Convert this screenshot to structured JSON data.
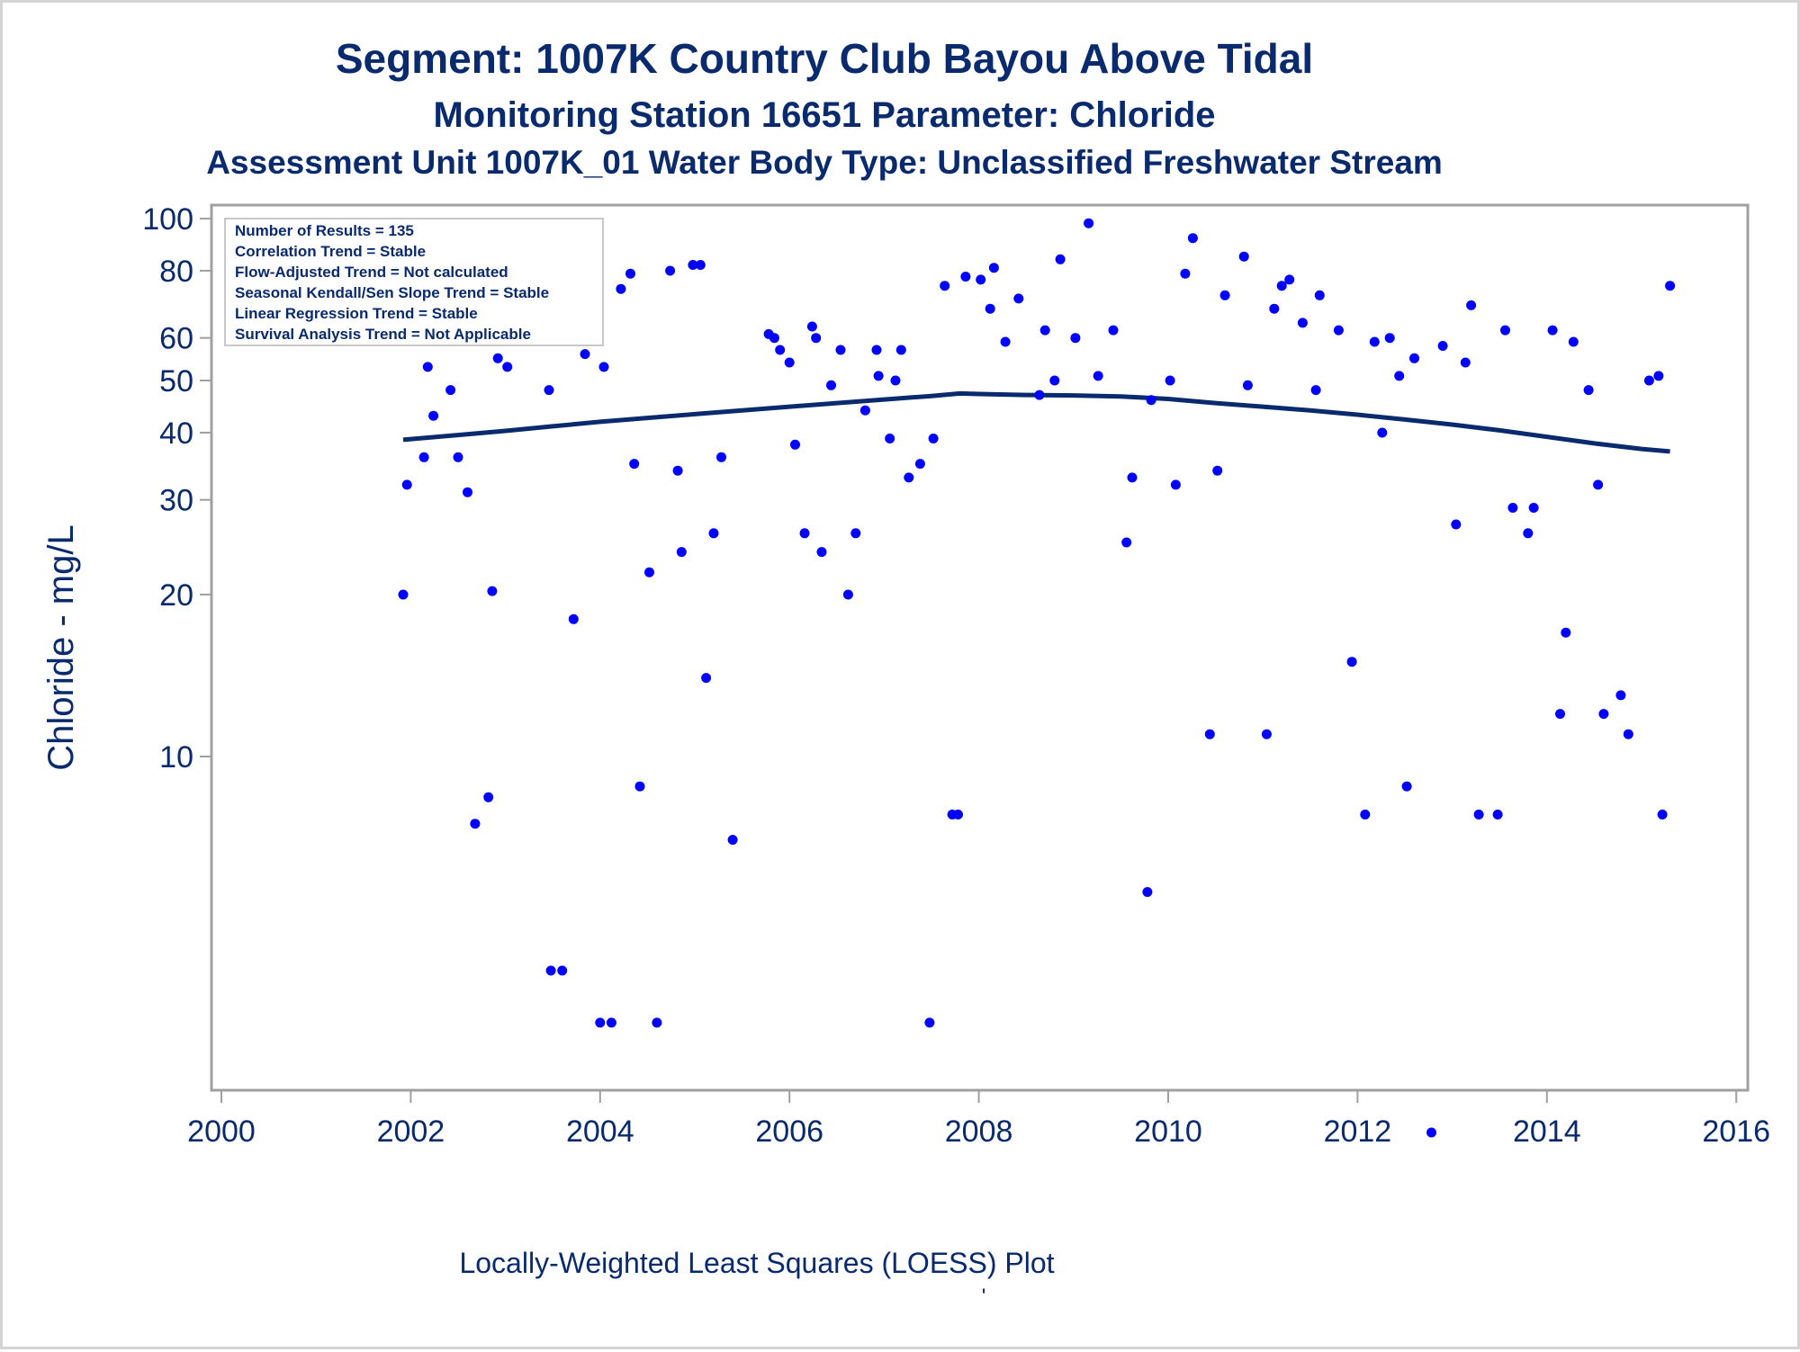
{
  "chart_data": {
    "type": "scatter",
    "title": "Segment: 1007K  Country Club Bayou Above Tidal",
    "subtitle": "Monitoring Station 16651 Parameter: Chloride",
    "subtitle2": "Assessment Unit 1007K_01   Water Body Type: Unclassified Freshwater Stream",
    "ylabel": "Chloride - mg/L",
    "xlabel": "",
    "footnote": "Locally-Weighted Least Squares (LOESS) Plot",
    "footnote_mark": "'",
    "y_scale": "log",
    "xlim": [
      2000,
      2016
    ],
    "ylim": [
      2.4,
      105
    ],
    "x_ticks": [
      "2000",
      "2002",
      "2004",
      "2006",
      "2008",
      "2010",
      "2012",
      "2014",
      "2016"
    ],
    "y_ticks": [
      "100",
      "80",
      "60",
      "50",
      "40",
      "30",
      "20",
      "10"
    ],
    "stats": [
      "Number of Results = 135",
      "Correlation Trend = Stable",
      "Flow-Adjusted Trend = Not calculated",
      "Seasonal Kendall/Sen Slope Trend = Stable",
      "Linear Regression Trend = Stable",
      "Survival Analysis Trend = Not Applicable"
    ],
    "colors": {
      "points": "#0000ff",
      "loess": "#0a2a6e",
      "text": "#0a2a6e",
      "frame": "#a0a0a0"
    },
    "series": [
      {
        "kind": "points",
        "points": [
          [
            2001.92,
            20
          ],
          [
            2001.96,
            32
          ],
          [
            2002.04,
            93
          ],
          [
            2002.14,
            36
          ],
          [
            2002.18,
            53
          ],
          [
            2002.24,
            43
          ],
          [
            2002.32,
            60
          ],
          [
            2002.42,
            48
          ],
          [
            2002.5,
            36
          ],
          [
            2002.6,
            31
          ],
          [
            2002.68,
            7.5
          ],
          [
            2002.82,
            8.4
          ],
          [
            2002.86,
            20.3
          ],
          [
            2002.92,
            55
          ],
          [
            2003.02,
            53
          ],
          [
            2003.1,
            66
          ],
          [
            2003.26,
            73
          ],
          [
            2003.34,
            82
          ],
          [
            2003.46,
            48
          ],
          [
            2003.48,
            4
          ],
          [
            2003.6,
            4
          ],
          [
            2003.72,
            18
          ],
          [
            2003.78,
            67
          ],
          [
            2003.84,
            56
          ],
          [
            2004.0,
            3.2
          ],
          [
            2004.04,
            53
          ],
          [
            2004.12,
            3.2
          ],
          [
            2004.22,
            74
          ],
          [
            2004.32,
            79
          ],
          [
            2004.36,
            35
          ],
          [
            2004.42,
            8.8
          ],
          [
            2004.52,
            22
          ],
          [
            2004.6,
            3.2
          ],
          [
            2004.74,
            80
          ],
          [
            2004.82,
            34
          ],
          [
            2004.86,
            24
          ],
          [
            2004.98,
            82
          ],
          [
            2005.06,
            82
          ],
          [
            2005.12,
            14
          ],
          [
            2005.2,
            26
          ],
          [
            2005.28,
            36
          ],
          [
            2005.4,
            7
          ],
          [
            2005.78,
            61
          ],
          [
            2005.84,
            60
          ],
          [
            2005.9,
            57
          ],
          [
            2006.0,
            54
          ],
          [
            2006.06,
            38
          ],
          [
            2006.16,
            26
          ],
          [
            2006.24,
            63
          ],
          [
            2006.28,
            60
          ],
          [
            2006.34,
            24
          ],
          [
            2006.44,
            49
          ],
          [
            2006.54,
            57
          ],
          [
            2006.62,
            20
          ],
          [
            2006.7,
            26
          ],
          [
            2006.8,
            44
          ],
          [
            2006.92,
            57
          ],
          [
            2006.94,
            51
          ],
          [
            2007.06,
            39
          ],
          [
            2007.12,
            50
          ],
          [
            2007.18,
            57
          ],
          [
            2007.26,
            33
          ],
          [
            2007.38,
            35
          ],
          [
            2007.48,
            3.2
          ],
          [
            2007.52,
            39
          ],
          [
            2007.64,
            75
          ],
          [
            2007.72,
            7.8
          ],
          [
            2007.78,
            7.8
          ],
          [
            2007.86,
            78
          ],
          [
            2008.02,
            77
          ],
          [
            2008.12,
            68
          ],
          [
            2008.16,
            81
          ],
          [
            2008.28,
            59
          ],
          [
            2008.42,
            71
          ],
          [
            2008.64,
            47
          ],
          [
            2008.7,
            62
          ],
          [
            2008.8,
            50
          ],
          [
            2008.86,
            84
          ],
          [
            2009.02,
            60
          ],
          [
            2009.16,
            98
          ],
          [
            2009.26,
            51
          ],
          [
            2009.42,
            62
          ],
          [
            2009.56,
            25
          ],
          [
            2009.62,
            33
          ],
          [
            2009.78,
            5.6
          ],
          [
            2009.82,
            46
          ],
          [
            2010.02,
            50
          ],
          [
            2010.08,
            32
          ],
          [
            2010.18,
            79
          ],
          [
            2010.26,
            92
          ],
          [
            2010.44,
            11
          ],
          [
            2010.52,
            34
          ],
          [
            2010.6,
            72
          ],
          [
            2010.8,
            85
          ],
          [
            2010.84,
            49
          ],
          [
            2011.04,
            11
          ],
          [
            2011.12,
            68
          ],
          [
            2011.2,
            75
          ],
          [
            2011.28,
            77
          ],
          [
            2011.42,
            64
          ],
          [
            2011.56,
            48
          ],
          [
            2011.6,
            72
          ],
          [
            2011.8,
            62
          ],
          [
            2011.94,
            15
          ],
          [
            2012.08,
            7.8
          ],
          [
            2012.18,
            59
          ],
          [
            2012.26,
            40
          ],
          [
            2012.34,
            60
          ],
          [
            2012.44,
            51
          ],
          [
            2012.52,
            8.8
          ],
          [
            2012.6,
            55
          ],
          [
            2012.78,
            2
          ],
          [
            2012.9,
            58
          ],
          [
            2013.04,
            27
          ],
          [
            2013.14,
            54
          ],
          [
            2013.2,
            69
          ],
          [
            2013.28,
            7.8
          ],
          [
            2013.48,
            7.8
          ],
          [
            2013.56,
            62
          ],
          [
            2013.64,
            29
          ],
          [
            2013.8,
            26
          ],
          [
            2013.86,
            29
          ],
          [
            2014.06,
            62
          ],
          [
            2014.14,
            12
          ],
          [
            2014.2,
            17
          ],
          [
            2014.28,
            59
          ],
          [
            2014.44,
            48
          ],
          [
            2014.54,
            32
          ],
          [
            2014.6,
            12
          ],
          [
            2014.78,
            13
          ],
          [
            2014.86,
            11
          ],
          [
            2015.08,
            50
          ],
          [
            2015.18,
            51
          ],
          [
            2015.22,
            7.8
          ],
          [
            2015.3,
            75
          ]
        ]
      },
      {
        "kind": "loess",
        "points": [
          [
            2001.92,
            38.8
          ],
          [
            2002.5,
            39.6
          ],
          [
            2003.0,
            40.3
          ],
          [
            2003.5,
            41.1
          ],
          [
            2004.0,
            41.9
          ],
          [
            2004.5,
            42.6
          ],
          [
            2005.0,
            43.3
          ],
          [
            2005.5,
            44.0
          ],
          [
            2006.0,
            44.7
          ],
          [
            2006.5,
            45.4
          ],
          [
            2007.0,
            46.1
          ],
          [
            2007.5,
            46.8
          ],
          [
            2007.8,
            47.3
          ],
          [
            2008.0,
            47.2
          ],
          [
            2008.5,
            47.0
          ],
          [
            2009.0,
            46.9
          ],
          [
            2009.5,
            46.7
          ],
          [
            2010.0,
            46.2
          ],
          [
            2010.5,
            45.4
          ],
          [
            2011.0,
            44.7
          ],
          [
            2011.5,
            44.0
          ],
          [
            2012.0,
            43.2
          ],
          [
            2012.5,
            42.3
          ],
          [
            2013.0,
            41.4
          ],
          [
            2013.5,
            40.4
          ],
          [
            2014.0,
            39.3
          ],
          [
            2014.5,
            38.2
          ],
          [
            2015.0,
            37.3
          ],
          [
            2015.3,
            36.9
          ]
        ]
      }
    ]
  }
}
